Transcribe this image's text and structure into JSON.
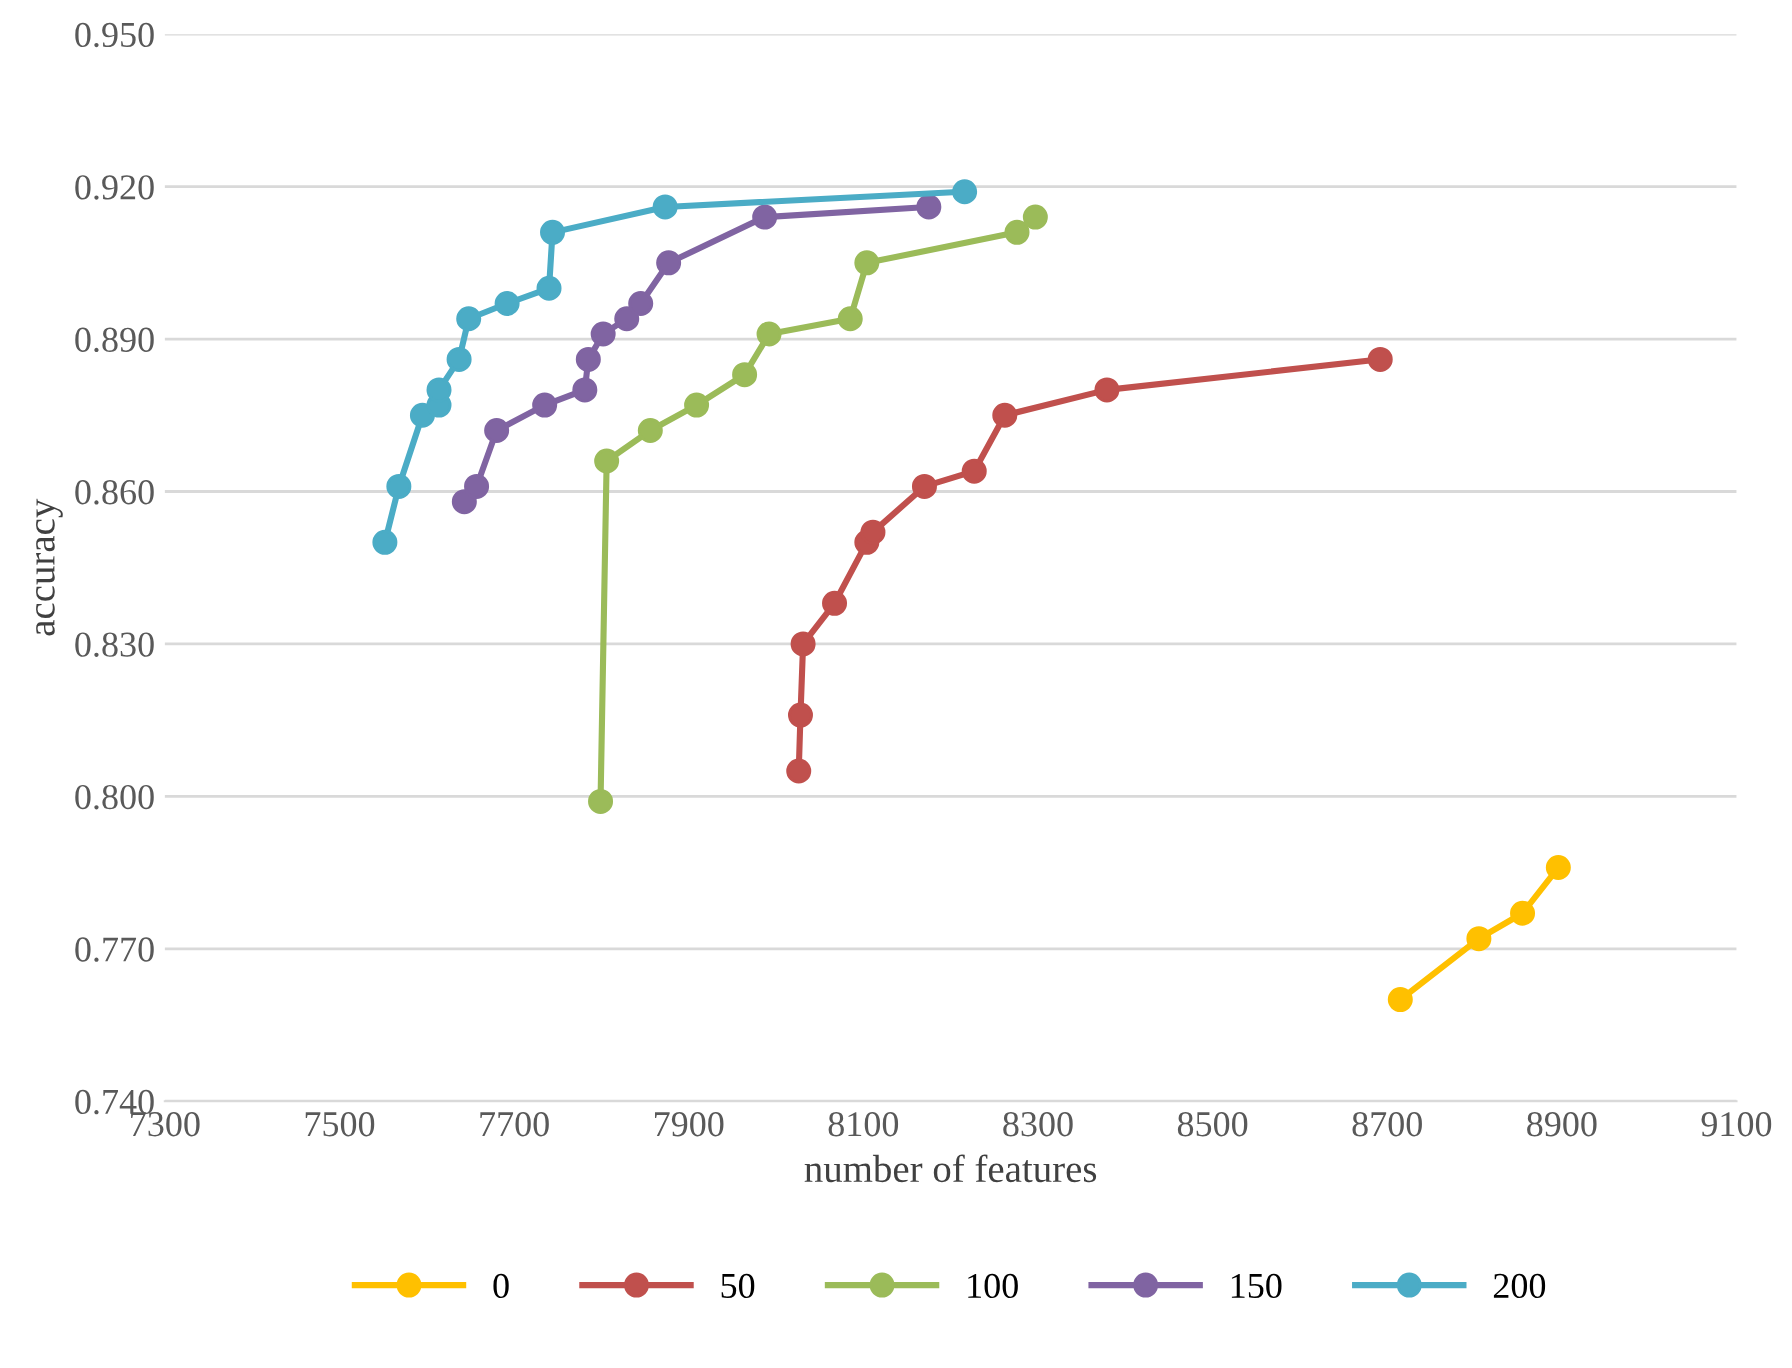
{
  "chart_data": {
    "type": "line",
    "xlabel": "number of features",
    "ylabel": "accuracy",
    "xlim": [
      7300,
      9100
    ],
    "xticks": [
      7300,
      7500,
      7700,
      7900,
      8100,
      8300,
      8500,
      8700,
      8900,
      9100
    ],
    "ylim": [
      0.74,
      0.95
    ],
    "yticks": [
      {
        "value": 0.74,
        "label": "0.740"
      },
      {
        "value": 0.77,
        "label": "0.770"
      },
      {
        "value": 0.8,
        "label": "0.800"
      },
      {
        "value": 0.83,
        "label": "0.830"
      },
      {
        "value": 0.86,
        "label": "0.860"
      },
      {
        "value": 0.89,
        "label": "0.890"
      },
      {
        "value": 0.92,
        "label": "0.920"
      },
      {
        "value": 0.95,
        "label": "0.950"
      }
    ],
    "grid": "y",
    "legend": "bottom",
    "marker": "circle",
    "line_style": "solid",
    "series": [
      {
        "name": "0",
        "color": "#ffc000",
        "x": [
          8715,
          8805,
          8855,
          8896
        ],
        "values": [
          0.76,
          0.772,
          0.777,
          0.786
        ]
      },
      {
        "name": "50",
        "color": "#c0504d",
        "x": [
          8026,
          8028,
          8031,
          8067,
          8104,
          8111,
          8170,
          8227,
          8262,
          8379,
          8692
        ],
        "values": [
          0.805,
          0.816,
          0.83,
          0.838,
          0.85,
          0.852,
          0.861,
          0.864,
          0.875,
          0.88,
          0.886
        ]
      },
      {
        "name": "100",
        "color": "#9bbb59",
        "x": [
          7799,
          7806,
          7856,
          7909,
          7964,
          7992,
          8085,
          8104,
          8276,
          8297
        ],
        "values": [
          0.799,
          0.866,
          0.872,
          0.877,
          0.883,
          0.891,
          0.894,
          0.905,
          0.911,
          0.914
        ]
      },
      {
        "name": "150",
        "color": "#8064a2",
        "x": [
          7643,
          7657,
          7680,
          7735,
          7781,
          7785,
          7802,
          7829,
          7845,
          7877,
          7987,
          8175
        ],
        "values": [
          0.858,
          0.861,
          0.872,
          0.877,
          0.88,
          0.886,
          0.891,
          0.894,
          0.897,
          0.905,
          0.914,
          0.916
        ]
      },
      {
        "name": "200",
        "color": "#4bacc6",
        "x": [
          7552,
          7568,
          7595,
          7614,
          7614,
          7637,
          7648,
          7692,
          7740,
          7744,
          7873,
          8216
        ],
        "values": [
          0.85,
          0.861,
          0.875,
          0.877,
          0.88,
          0.886,
          0.894,
          0.897,
          0.9,
          0.911,
          0.916,
          0.919
        ]
      }
    ]
  }
}
